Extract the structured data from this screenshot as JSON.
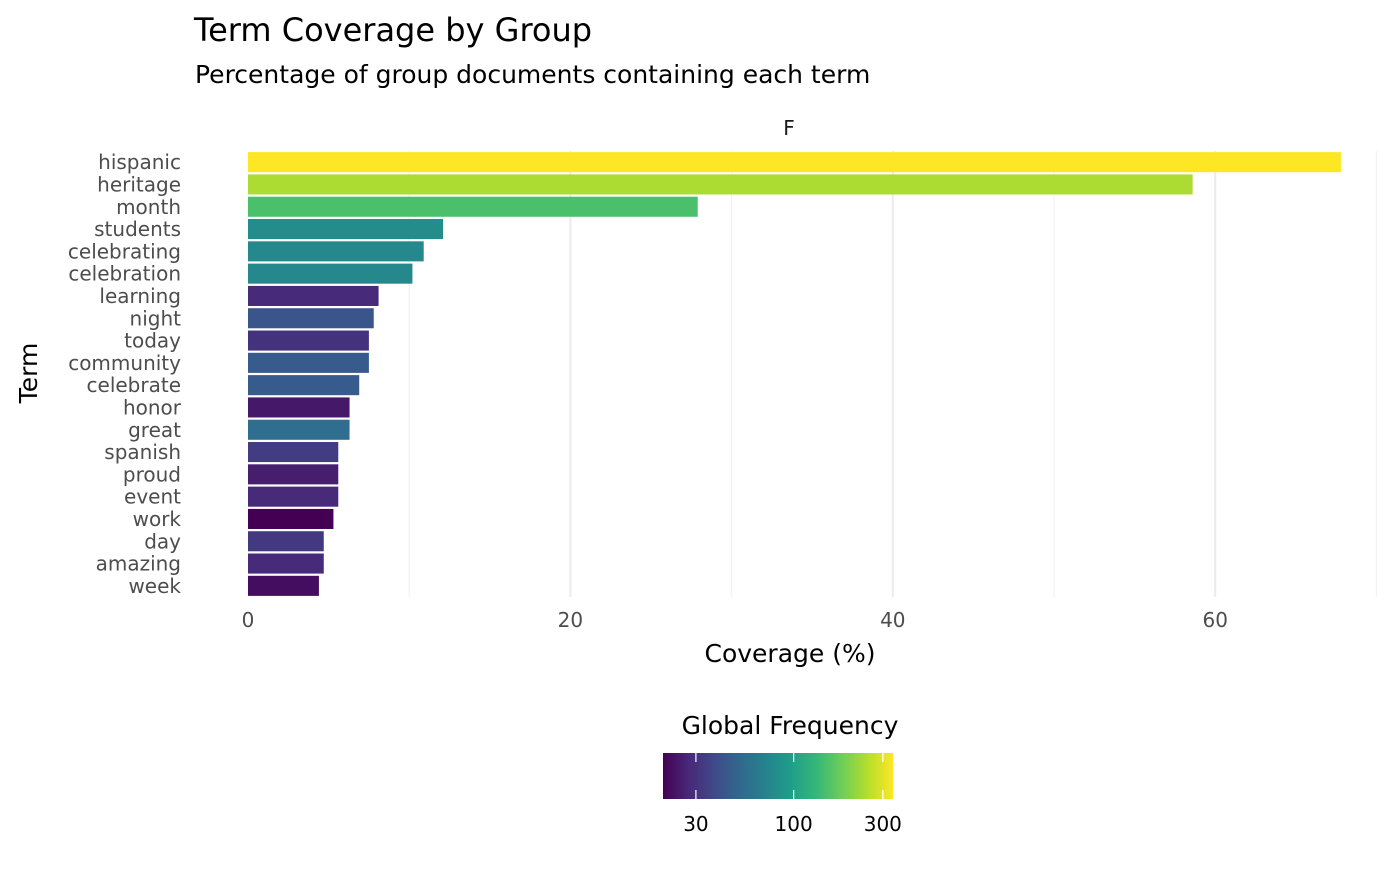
{
  "chart_data": {
    "type": "bar",
    "orientation": "horizontal",
    "title": "Term Coverage by Group",
    "subtitle": "Percentage of group documents containing each term",
    "facet_label": "F",
    "xlabel": "Coverage (%)",
    "ylabel": "Term",
    "xlim": [
      0,
      70
    ],
    "x_ticks": [
      0,
      20,
      40,
      60
    ],
    "x_tick_labels": [
      "0",
      "20",
      "40",
      "60"
    ],
    "grid": true,
    "categories": [
      "hispanic",
      "heritage",
      "month",
      "students",
      "celebrating",
      "celebration",
      "learning",
      "night",
      "today",
      "community",
      "celebrate",
      "honor",
      "great",
      "spanish",
      "proud",
      "event",
      "work",
      "day",
      "amazing",
      "week"
    ],
    "values": [
      67.8,
      58.6,
      27.9,
      12.1,
      10.9,
      10.2,
      8.1,
      7.8,
      7.5,
      7.5,
      6.9,
      6.3,
      6.3,
      5.6,
      5.6,
      5.6,
      5.3,
      4.7,
      4.7,
      4.4
    ],
    "global_frequency": [
      340,
      240,
      150,
      80,
      75,
      75,
      28,
      42,
      30,
      45,
      45,
      24,
      55,
      33,
      25,
      28,
      20,
      32,
      28,
      22
    ],
    "colorbar": {
      "title": "Global Frequency",
      "scale": "log",
      "range": [
        20,
        340
      ],
      "ticks": [
        30,
        100,
        300
      ],
      "tick_labels": [
        "30",
        "100",
        "300"
      ],
      "palette": [
        "#440154",
        "#482878",
        "#3E4A89",
        "#31688E",
        "#26828E",
        "#1F9E89",
        "#35B779",
        "#6DCD59",
        "#B4DE2C",
        "#FDE725"
      ]
    },
    "legend_placement": "bottom"
  }
}
